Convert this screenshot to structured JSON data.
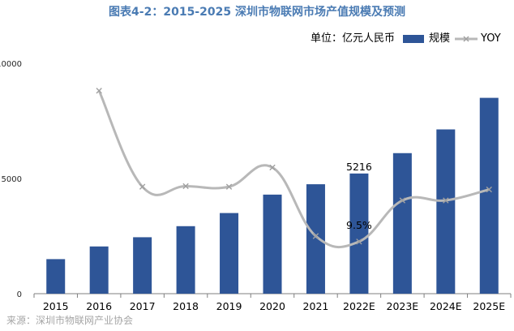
{
  "chart_data": {
    "type": "bar",
    "title": "图表4-2：2015-2025 深圳市物联网市场产值规模及预测",
    "unit_label": "单位：亿元人民币",
    "categories": [
      "2015",
      "2016",
      "2017",
      "2018",
      "2019",
      "2020",
      "2021",
      "2022E",
      "2023E",
      "2024E",
      "2025E"
    ],
    "series": [
      {
        "name": "规模",
        "type": "bar",
        "color": "#2e5597",
        "values": [
          1500,
          2050,
          2450,
          2930,
          3500,
          4300,
          4750,
          5216,
          6100,
          7130,
          8500
        ]
      },
      {
        "name": "YOY",
        "type": "line",
        "color": "#b8b8b8",
        "axis": "secondary",
        "values": [
          null,
          0.37,
          0.195,
          0.196,
          0.195,
          0.23,
          0.105,
          0.095,
          0.17,
          0.17,
          0.19
        ]
      }
    ],
    "y_ticks": [
      "0",
      "5000",
      "10000"
    ],
    "ylim": [
      0,
      10000
    ],
    "secondary_ylim": [
      0,
      0.42
    ],
    "annotations": [
      {
        "category": "2022E",
        "text": "9.5%"
      },
      {
        "category": "2022E",
        "text": "5216"
      }
    ],
    "legend_position": "top-right",
    "grid": false,
    "source": "来源：深圳市物联网产业协会"
  }
}
